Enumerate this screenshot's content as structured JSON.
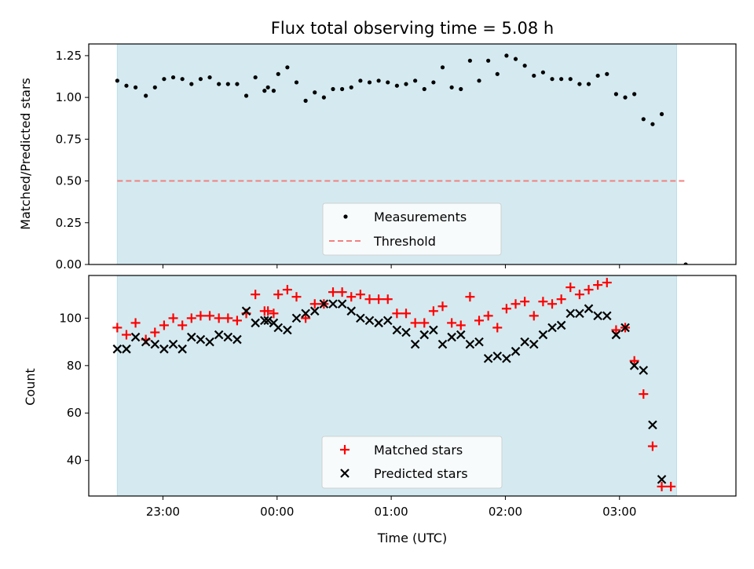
{
  "title": "Flux total observing time = 5.08 h",
  "colors": {
    "observing_span": "#d4eaf0",
    "threshold": "#f28080",
    "measurement": "#000000",
    "matched": "#ff0000",
    "predicted": "#000000"
  },
  "chart_data": [
    {
      "type": "scatter",
      "ylabel": "Matched/Predicted stars",
      "xlabel": "",
      "x_unit": "hours (UTC) relative to 00:00",
      "xlim": [
        -1.65,
        4.02
      ],
      "ylim": [
        0.0,
        1.32
      ],
      "yticks": [
        "0.00",
        "0.25",
        "0.50",
        "0.75",
        "1.00",
        "1.25"
      ],
      "observing_span": [
        -1.4,
        3.5
      ],
      "threshold": 0.5,
      "threshold_range": [
        -1.4,
        3.58
      ],
      "legend": {
        "position": "bottom-center",
        "items": [
          "Measurements",
          "Threshold"
        ]
      },
      "series": [
        {
          "name": "Measurements",
          "points": [
            [
              -1.4,
              1.1
            ],
            [
              -1.32,
              1.07
            ],
            [
              -1.24,
              1.06
            ],
            [
              -1.15,
              1.01
            ],
            [
              -1.07,
              1.06
            ],
            [
              -0.99,
              1.11
            ],
            [
              -0.91,
              1.12
            ],
            [
              -0.83,
              1.11
            ],
            [
              -0.75,
              1.08
            ],
            [
              -0.67,
              1.11
            ],
            [
              -0.59,
              1.12
            ],
            [
              -0.51,
              1.08
            ],
            [
              -0.43,
              1.08
            ],
            [
              -0.35,
              1.08
            ],
            [
              -0.27,
              1.01
            ],
            [
              -0.19,
              1.12
            ],
            [
              -0.11,
              1.04
            ],
            [
              -0.03,
              1.04
            ],
            [
              -0.08,
              1.06
            ],
            [
              0.01,
              1.14
            ],
            [
              0.09,
              1.18
            ],
            [
              0.17,
              1.09
            ],
            [
              0.25,
              0.98
            ],
            [
              0.33,
              1.03
            ],
            [
              0.41,
              1.0
            ],
            [
              0.49,
              1.05
            ],
            [
              0.57,
              1.05
            ],
            [
              0.65,
              1.06
            ],
            [
              0.73,
              1.1
            ],
            [
              0.81,
              1.09
            ],
            [
              0.89,
              1.1
            ],
            [
              0.97,
              1.09
            ],
            [
              1.05,
              1.07
            ],
            [
              1.13,
              1.08
            ],
            [
              1.21,
              1.1
            ],
            [
              1.29,
              1.05
            ],
            [
              1.37,
              1.09
            ],
            [
              1.45,
              1.18
            ],
            [
              1.53,
              1.06
            ],
            [
              1.61,
              1.05
            ],
            [
              1.69,
              1.22
            ],
            [
              1.77,
              1.1
            ],
            [
              1.85,
              1.22
            ],
            [
              1.93,
              1.14
            ],
            [
              2.01,
              1.25
            ],
            [
              2.09,
              1.23
            ],
            [
              2.17,
              1.19
            ],
            [
              2.25,
              1.13
            ],
            [
              2.33,
              1.15
            ],
            [
              2.41,
              1.11
            ],
            [
              2.49,
              1.11
            ],
            [
              2.57,
              1.11
            ],
            [
              2.65,
              1.08
            ],
            [
              2.73,
              1.08
            ],
            [
              2.81,
              1.13
            ],
            [
              2.89,
              1.14
            ],
            [
              2.97,
              1.02
            ],
            [
              3.05,
              1.0
            ],
            [
              3.13,
              1.02
            ],
            [
              3.21,
              0.87
            ],
            [
              3.29,
              0.84
            ],
            [
              3.37,
              0.9
            ],
            [
              3.58,
              0.0
            ]
          ]
        },
        {
          "name": "Threshold",
          "line": 0.5
        }
      ]
    },
    {
      "type": "scatter",
      "ylabel": "Count",
      "xlabel": "Time (UTC)",
      "xticks": [
        {
          "value": -1.0,
          "label": "23:00"
        },
        {
          "value": 0.0,
          "label": "00:00"
        },
        {
          "value": 1.0,
          "label": "01:00"
        },
        {
          "value": 2.0,
          "label": "02:00"
        },
        {
          "value": 3.0,
          "label": "03:00"
        }
      ],
      "xlim": [
        -1.65,
        4.02
      ],
      "ylim": [
        25,
        118
      ],
      "yticks": [
        "40",
        "60",
        "80",
        "100"
      ],
      "observing_span": [
        -1.4,
        3.5
      ],
      "legend": {
        "position": "bottom-center",
        "items": [
          "Matched stars",
          "Predicted stars"
        ]
      },
      "series": [
        {
          "name": "Matched stars",
          "points": [
            [
              -1.4,
              96
            ],
            [
              -1.32,
              93
            ],
            [
              -1.24,
              98
            ],
            [
              -1.15,
              91
            ],
            [
              -1.07,
              94
            ],
            [
              -0.99,
              97
            ],
            [
              -0.91,
              100
            ],
            [
              -0.83,
              97
            ],
            [
              -0.75,
              100
            ],
            [
              -0.67,
              101
            ],
            [
              -0.59,
              101
            ],
            [
              -0.51,
              100
            ],
            [
              -0.43,
              100
            ],
            [
              -0.35,
              99
            ],
            [
              -0.27,
              102
            ],
            [
              -0.19,
              110
            ],
            [
              -0.11,
              103
            ],
            [
              -0.03,
              102
            ],
            [
              -0.08,
              103
            ],
            [
              0.01,
              110
            ],
            [
              0.09,
              112
            ],
            [
              0.17,
              109
            ],
            [
              0.25,
              100
            ],
            [
              0.33,
              106
            ],
            [
              0.41,
              106
            ],
            [
              0.49,
              111
            ],
            [
              0.57,
              111
            ],
            [
              0.65,
              109
            ],
            [
              0.73,
              110
            ],
            [
              0.81,
              108
            ],
            [
              0.89,
              108
            ],
            [
              0.97,
              108
            ],
            [
              1.05,
              102
            ],
            [
              1.13,
              102
            ],
            [
              1.21,
              98
            ],
            [
              1.29,
              98
            ],
            [
              1.37,
              103
            ],
            [
              1.45,
              105
            ],
            [
              1.53,
              98
            ],
            [
              1.61,
              97
            ],
            [
              1.69,
              109
            ],
            [
              1.77,
              99
            ],
            [
              1.85,
              101
            ],
            [
              1.93,
              96
            ],
            [
              2.01,
              104
            ],
            [
              2.09,
              106
            ],
            [
              2.17,
              107
            ],
            [
              2.25,
              101
            ],
            [
              2.33,
              107
            ],
            [
              2.41,
              106
            ],
            [
              2.49,
              108
            ],
            [
              2.57,
              113
            ],
            [
              2.65,
              110
            ],
            [
              2.73,
              112
            ],
            [
              2.81,
              114
            ],
            [
              2.89,
              115
            ],
            [
              2.97,
              95
            ],
            [
              3.05,
              96
            ],
            [
              3.13,
              82
            ],
            [
              3.21,
              68
            ],
            [
              3.29,
              46
            ],
            [
              3.37,
              29
            ],
            [
              3.45,
              29
            ]
          ]
        },
        {
          "name": "Predicted stars",
          "points": [
            [
              -1.4,
              87
            ],
            [
              -1.32,
              87
            ],
            [
              -1.24,
              92
            ],
            [
              -1.15,
              90
            ],
            [
              -1.07,
              89
            ],
            [
              -0.99,
              87
            ],
            [
              -0.91,
              89
            ],
            [
              -0.83,
              87
            ],
            [
              -0.75,
              92
            ],
            [
              -0.67,
              91
            ],
            [
              -0.59,
              90
            ],
            [
              -0.51,
              93
            ],
            [
              -0.43,
              92
            ],
            [
              -0.35,
              91
            ],
            [
              -0.27,
              103
            ],
            [
              -0.19,
              98
            ],
            [
              -0.11,
              99
            ],
            [
              -0.03,
              98
            ],
            [
              -0.08,
              99
            ],
            [
              0.01,
              96
            ],
            [
              0.09,
              95
            ],
            [
              0.17,
              100
            ],
            [
              0.25,
              102
            ],
            [
              0.33,
              103
            ],
            [
              0.41,
              106
            ],
            [
              0.49,
              106
            ],
            [
              0.57,
              106
            ],
            [
              0.65,
              103
            ],
            [
              0.73,
              100
            ],
            [
              0.81,
              99
            ],
            [
              0.89,
              98
            ],
            [
              0.97,
              99
            ],
            [
              1.05,
              95
            ],
            [
              1.13,
              94
            ],
            [
              1.21,
              89
            ],
            [
              1.29,
              93
            ],
            [
              1.37,
              95
            ],
            [
              1.45,
              89
            ],
            [
              1.53,
              92
            ],
            [
              1.61,
              93
            ],
            [
              1.69,
              89
            ],
            [
              1.77,
              90
            ],
            [
              1.85,
              83
            ],
            [
              1.93,
              84
            ],
            [
              2.01,
              83
            ],
            [
              2.09,
              86
            ],
            [
              2.17,
              90
            ],
            [
              2.25,
              89
            ],
            [
              2.33,
              93
            ],
            [
              2.41,
              96
            ],
            [
              2.49,
              97
            ],
            [
              2.57,
              102
            ],
            [
              2.65,
              102
            ],
            [
              2.73,
              104
            ],
            [
              2.81,
              101
            ],
            [
              2.89,
              101
            ],
            [
              2.97,
              93
            ],
            [
              3.05,
              96
            ],
            [
              3.13,
              80
            ],
            [
              3.21,
              78
            ],
            [
              3.29,
              55
            ],
            [
              3.37,
              32
            ]
          ]
        }
      ]
    }
  ]
}
